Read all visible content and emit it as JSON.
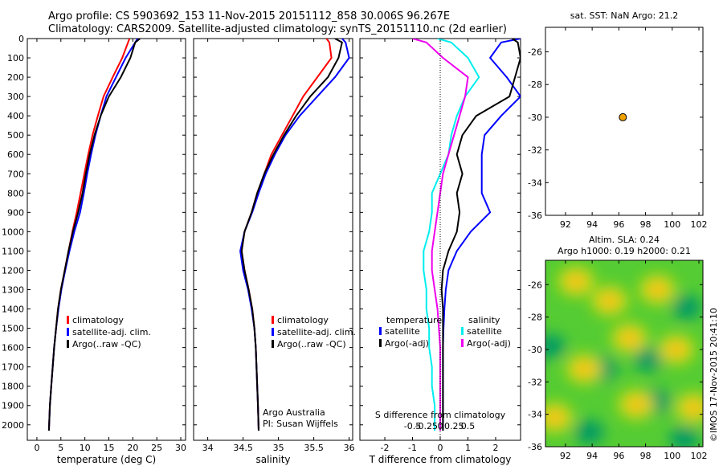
{
  "header": {
    "line1": "Argo profile: CS 5903692_153 11-Nov-2015 20151112_858 30.006S 96.267E",
    "line2": "Climatology: CARS2009. Satellite-adjusted climatology: synTS_20151110.nc (2d earlier)"
  },
  "colors": {
    "climatology": "#ff0000",
    "satellite": "#0000ff",
    "argo": "#000000",
    "sat_salinity": "#00eeee",
    "argo_salinity": "#ee00ee",
    "marker": "#f0a000"
  },
  "chart_data": [
    {
      "type": "line",
      "id": "temperature",
      "xlabel": "temperature (deg C)",
      "ylabel": "",
      "xlim": [
        -2,
        31
      ],
      "ylim": [
        2080,
        0
      ],
      "xticks": [
        0,
        5,
        10,
        15,
        20,
        25,
        30
      ],
      "yticks": [
        0,
        100,
        200,
        300,
        400,
        500,
        600,
        700,
        800,
        900,
        1000,
        1100,
        1200,
        1300,
        1400,
        1500,
        1600,
        1700,
        1800,
        1900,
        2000
      ],
      "legend": {
        "placement": "lower-middle",
        "entries": [
          "climatology",
          "satellite-adj. clim.",
          "Argo(..raw -QC)"
        ]
      },
      "series": [
        {
          "name": "climatology",
          "color": "#ff0000",
          "x": [
            19.3,
            19.0,
            17.8,
            15.8,
            13.9,
            12.7,
            11.6,
            10.7,
            9.9,
            9.1,
            8.3,
            7.4,
            6.6,
            5.8,
            5.0,
            4.4,
            4.0,
            3.6,
            3.3,
            3.0,
            2.7,
            2.5
          ],
          "y": [
            0,
            20,
            100,
            200,
            300,
            400,
            500,
            600,
            700,
            800,
            900,
            1000,
            1100,
            1200,
            1300,
            1400,
            1500,
            1600,
            1700,
            1800,
            1900,
            2030
          ]
        },
        {
          "name": "satellite-adj. clim.",
          "color": "#0000ff",
          "x": [
            21.0,
            20.5,
            18.5,
            16.5,
            14.5,
            13.3,
            12.2,
            11.3,
            10.5,
            9.8,
            9.0,
            7.8,
            6.8,
            5.9,
            5.1,
            4.5,
            4.0,
            3.6,
            3.3,
            3.0,
            2.7,
            2.5
          ],
          "y": [
            0,
            20,
            100,
            200,
            300,
            400,
            500,
            600,
            700,
            800,
            900,
            1000,
            1100,
            1200,
            1300,
            1400,
            1500,
            1600,
            1700,
            1800,
            1900,
            2030
          ]
        },
        {
          "name": "Argo(..raw -QC)",
          "color": "#000000",
          "x": [
            21.5,
            20.5,
            19.5,
            17.5,
            15.0,
            13.3,
            12.0,
            11.0,
            10.2,
            9.5,
            8.6,
            7.5,
            6.6,
            5.8,
            5.0,
            4.4,
            4.0,
            3.6,
            3.3,
            3.0,
            2.7,
            2.5
          ],
          "y": [
            0,
            20,
            100,
            200,
            300,
            400,
            500,
            600,
            700,
            800,
            900,
            1000,
            1100,
            1200,
            1300,
            1400,
            1500,
            1600,
            1700,
            1800,
            1900,
            2030
          ]
        }
      ]
    },
    {
      "type": "line",
      "id": "salinity",
      "xlabel": "salinity",
      "ylabel": "",
      "xlim": [
        33.8,
        36.05
      ],
      "ylim": [
        2080,
        0
      ],
      "xticks": [
        34,
        34.5,
        35,
        35.5,
        36
      ],
      "legend": {
        "placement": "lower-middle",
        "entries": [
          "climatology",
          "satellite-adj. clim.",
          "Argo(..raw -QC)"
        ]
      },
      "annotation": [
        "Argo Australia",
        "PI: Susan Wijffels"
      ],
      "series": [
        {
          "name": "climatology",
          "color": "#ff0000",
          "x": [
            35.68,
            35.72,
            35.75,
            35.55,
            35.35,
            35.2,
            35.05,
            34.9,
            34.8,
            34.7,
            34.62,
            34.52,
            34.48,
            34.52,
            34.58,
            34.63,
            34.66,
            34.68,
            34.69,
            34.7,
            34.71,
            34.72
          ],
          "y": [
            0,
            20,
            100,
            200,
            300,
            400,
            500,
            600,
            700,
            800,
            900,
            1000,
            1100,
            1200,
            1300,
            1400,
            1500,
            1600,
            1700,
            1800,
            1900,
            2030
          ]
        },
        {
          "name": "satellite-adj. clim.",
          "color": "#0000ff",
          "x": [
            35.9,
            35.95,
            36.0,
            35.8,
            35.55,
            35.3,
            35.1,
            34.95,
            34.82,
            34.72,
            34.63,
            34.52,
            34.46,
            34.5,
            34.57,
            34.62,
            34.66,
            34.68,
            34.69,
            34.7,
            34.71,
            34.72
          ],
          "y": [
            0,
            20,
            100,
            200,
            300,
            400,
            500,
            600,
            700,
            800,
            900,
            1000,
            1100,
            1200,
            1300,
            1400,
            1500,
            1600,
            1700,
            1800,
            1900,
            2030
          ]
        },
        {
          "name": "Argo(..raw -QC)",
          "color": "#000000",
          "x": [
            35.8,
            35.9,
            35.85,
            35.7,
            35.45,
            35.25,
            35.08,
            34.93,
            34.8,
            34.7,
            34.62,
            34.52,
            34.48,
            34.52,
            34.58,
            34.63,
            34.66,
            34.68,
            34.69,
            34.7,
            34.71,
            34.72
          ],
          "y": [
            0,
            20,
            100,
            200,
            300,
            400,
            500,
            600,
            700,
            800,
            900,
            1000,
            1100,
            1200,
            1300,
            1400,
            1500,
            1600,
            1700,
            1800,
            1900,
            2030
          ]
        }
      ]
    },
    {
      "type": "line",
      "id": "difference",
      "xlabel": "T difference from climatology",
      "xlabel2": "S difference from climatology",
      "xlim": [
        -2.9,
        2.9
      ],
      "ylim": [
        2080,
        0
      ],
      "xticks": [
        -2,
        -1,
        0,
        1,
        2
      ],
      "xticks_top": [
        "-0.5",
        "-0.25",
        "0",
        "0.25",
        "0.5"
      ],
      "legend": {
        "placement": "lower-middle",
        "headers": [
          "temperature",
          "salinity"
        ],
        "entries": [
          "satellite",
          "Argo(-adj)",
          "satellite",
          "Argo(-adj)"
        ]
      },
      "series": [
        {
          "name": "satellite",
          "quantity": "temperature",
          "color": "#0000ff",
          "x": [
            2.9,
            2.2,
            1.8,
            2.4,
            2.9,
            2.2,
            1.6,
            1.5,
            1.5,
            1.5,
            1.8,
            1.1,
            0.6,
            0.3,
            0.2,
            0.15,
            0.12,
            0.1,
            0.1,
            0.1,
            0.1,
            0.1
          ],
          "y": [
            0,
            20,
            100,
            200,
            300,
            400,
            500,
            600,
            700,
            800,
            900,
            1000,
            1100,
            1200,
            1300,
            1400,
            1500,
            1600,
            1700,
            1800,
            1900,
            2030
          ]
        },
        {
          "name": "Argo(-adj)",
          "quantity": "temperature",
          "color": "#000000",
          "x": [
            2.6,
            2.8,
            2.9,
            2.7,
            2.5,
            1.3,
            0.8,
            0.6,
            0.8,
            0.6,
            0.7,
            0.6,
            0.3,
            0.1,
            0.05,
            0.1,
            0.1,
            0.1,
            0.1,
            0.1,
            0.1,
            0.1
          ],
          "y": [
            0,
            20,
            100,
            200,
            300,
            400,
            500,
            600,
            700,
            800,
            900,
            1000,
            1100,
            1200,
            1300,
            1400,
            1500,
            1600,
            1700,
            1800,
            1900,
            2030
          ]
        },
        {
          "name": "satellite",
          "quantity": "salinity",
          "color": "#00eeee",
          "x": [
            -0.1,
            0.4,
            1.0,
            1.4,
            0.9,
            0.6,
            0.4,
            0.3,
            0.0,
            -0.3,
            -0.3,
            -0.4,
            -0.6,
            -0.6,
            -0.5,
            -0.5,
            -0.4,
            -0.4,
            -0.3,
            -0.3,
            -0.2,
            -0.2
          ],
          "y": [
            0,
            20,
            100,
            200,
            300,
            400,
            500,
            600,
            700,
            800,
            900,
            1000,
            1100,
            1200,
            1300,
            1400,
            1500,
            1600,
            1700,
            1800,
            1900,
            2030
          ]
        },
        {
          "name": "Argo(-adj)",
          "quantity": "salinity",
          "color": "#ee00ee",
          "x": [
            -1.0,
            -0.5,
            0.1,
            1.0,
            0.9,
            0.7,
            0.5,
            0.3,
            0.1,
            0.0,
            -0.1,
            -0.2,
            -0.3,
            -0.3,
            -0.2,
            -0.1,
            -0.05,
            0.0,
            0.0,
            0.0,
            0.0,
            0.0
          ],
          "y": [
            0,
            20,
            100,
            200,
            300,
            400,
            500,
            600,
            700,
            800,
            900,
            1000,
            1100,
            1200,
            1300,
            1400,
            1500,
            1600,
            1700,
            1800,
            1900,
            2030
          ]
        }
      ]
    },
    {
      "type": "scatter",
      "id": "location",
      "title": "sat. SST: NaN Argo: 21.2",
      "xlim": [
        90.5,
        102.3
      ],
      "ylim": [
        -36,
        -24.5
      ],
      "xticks": [
        92,
        94,
        96,
        98,
        100,
        102
      ],
      "yticks": [
        -26,
        -28,
        -30,
        -32,
        -34,
        -36
      ],
      "points": [
        {
          "x": 96.3,
          "y": -30.0
        }
      ]
    },
    {
      "type": "heatmap",
      "id": "sla",
      "title": "Altim. SLA: 0.24",
      "subtitle": "Argo h1000: 0.19 h2000: 0.21",
      "xlim": [
        90.5,
        102.3
      ],
      "ylim": [
        -36,
        -24.5
      ],
      "xticks": [
        92,
        94,
        96,
        98,
        100,
        102
      ],
      "yticks": [
        -26,
        -28,
        -30,
        -32,
        -34,
        -36
      ],
      "colormap": [
        "#009966",
        "#2eb84a",
        "#55cc33",
        "#99dd22",
        "#dddd11",
        "#ffb020"
      ],
      "blobs_hot": [
        [
          92.8,
          -25.8
        ],
        [
          98.9,
          -26.3
        ],
        [
          96.8,
          -29.3
        ],
        [
          100.3,
          -30.0
        ],
        [
          93.4,
          -31.2
        ],
        [
          101.6,
          -33.6
        ],
        [
          97.3,
          -33.4
        ],
        [
          91.2,
          -34.2
        ],
        [
          95.3,
          -27.0
        ]
      ],
      "blobs_cold": [
        [
          90.9,
          -29.8
        ],
        [
          94.8,
          -31.2
        ],
        [
          101.1,
          -27.4
        ],
        [
          98.8,
          -33.2
        ],
        [
          93.8,
          -35.1
        ],
        [
          98.2,
          -30.6
        ],
        [
          100.9,
          -35.5
        ]
      ],
      "marker": {
        "x": 96.3,
        "y": -30.0
      }
    }
  ],
  "watermark": "©IMOS 17-Nov-2015 20:41:10"
}
